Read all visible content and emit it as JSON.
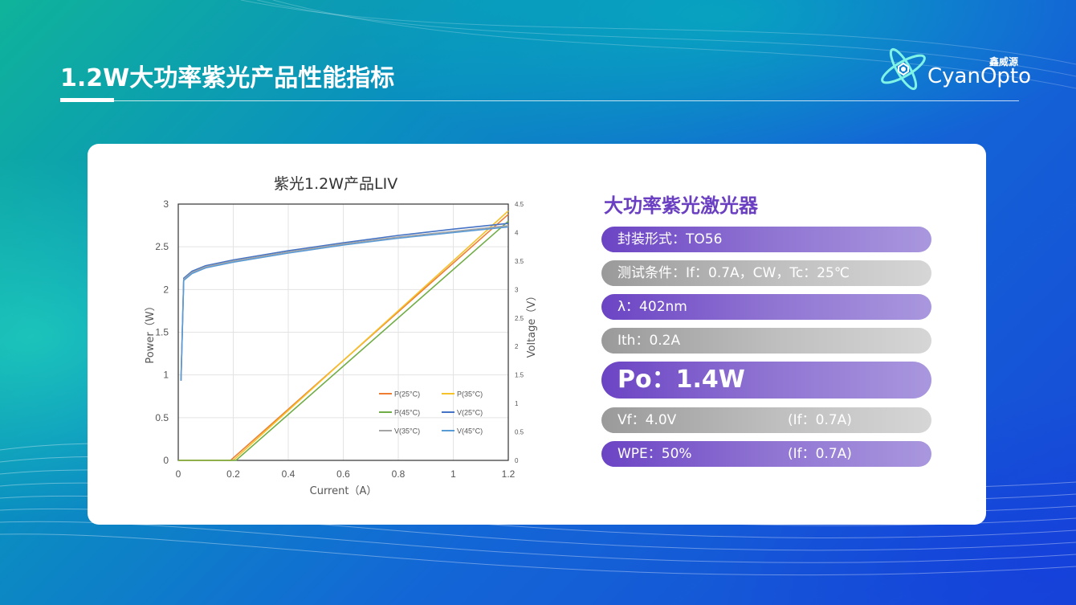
{
  "slide": {
    "title": "1.2W大功率紫光产品性能指标",
    "logo_cn": "鑫威源",
    "logo_en": "CyanOpto",
    "logo_icon": "atom-logo-icon"
  },
  "specs": {
    "heading": "大功率紫光激光器",
    "items": [
      {
        "text": "封装形式：TO56",
        "cond": "",
        "style": "purple"
      },
      {
        "text": "测试条件：If：0.7A，CW，Tc：25℃",
        "cond": "",
        "style": "gray"
      },
      {
        "text": "λ：402nm",
        "cond": "",
        "style": "purple"
      },
      {
        "text": "Ith：0.2A",
        "cond": "",
        "style": "gray"
      },
      {
        "text": "Po：1.4W",
        "cond": "",
        "style": "purple-big"
      },
      {
        "text": "Vf：4.0V",
        "cond": "(If：0.7A)",
        "style": "gray"
      },
      {
        "text": "WPE：50%",
        "cond": "(If：0.7A)",
        "style": "purple"
      }
    ]
  },
  "colors": {
    "p25": "#ee7d31",
    "p35": "#f5c22a",
    "p45": "#70ad47",
    "v25": "#4472c4",
    "v35": "#a5a5a5",
    "v45": "#5b9bd5"
  },
  "chart_data": {
    "type": "line",
    "title": "紫光1.2W产品LIV",
    "xlabel": "Current（A）",
    "ylabel": "Power（W）",
    "y2label": "Voltage（V）",
    "xlim": [
      0,
      1.2
    ],
    "ylim": [
      0,
      3
    ],
    "y2lim": [
      0,
      4.5
    ],
    "xticks": [
      "0",
      "0.2",
      "0.4",
      "0.6",
      "0.8",
      "1",
      "1.2"
    ],
    "yticks": [
      "0",
      "0.5",
      "1",
      "1.5",
      "2",
      "2.5",
      "3"
    ],
    "y2ticks": [
      "0",
      "0.5",
      "1",
      "1.5",
      "2",
      "2.5",
      "3",
      "3.5",
      "4",
      "4.5"
    ],
    "grid": true,
    "legend_position": "bottom-right",
    "series": [
      {
        "name": "P(25°C)",
        "axis": "left",
        "color_key": "p25",
        "x": [
          0,
          0.19,
          1.2
        ],
        "y": [
          0,
          0,
          2.88
        ]
      },
      {
        "name": "P(35°C)",
        "axis": "left",
        "color_key": "p35",
        "x": [
          0,
          0.2,
          1.2
        ],
        "y": [
          0,
          0,
          2.92
        ]
      },
      {
        "name": "P(45°C)",
        "axis": "left",
        "color_key": "p45",
        "x": [
          0,
          0.21,
          1.2
        ],
        "y": [
          0,
          0,
          2.8
        ]
      },
      {
        "name": "V(25°C)",
        "axis": "right",
        "color_key": "v25",
        "x": [
          0.01,
          0.02,
          0.05,
          0.1,
          0.2,
          0.4,
          0.6,
          0.8,
          1.0,
          1.2
        ],
        "y": [
          1.4,
          3.2,
          3.32,
          3.42,
          3.52,
          3.68,
          3.82,
          3.95,
          4.06,
          4.16
        ]
      },
      {
        "name": "V(35°C)",
        "axis": "right",
        "color_key": "v35",
        "x": [
          0.01,
          0.02,
          0.05,
          0.1,
          0.2,
          0.4,
          0.6,
          0.8,
          1.0,
          1.2
        ],
        "y": [
          1.4,
          3.18,
          3.3,
          3.4,
          3.5,
          3.66,
          3.8,
          3.92,
          4.02,
          4.12
        ]
      },
      {
        "name": "V(45°C)",
        "axis": "right",
        "color_key": "v45",
        "x": [
          0.01,
          0.02,
          0.05,
          0.1,
          0.2,
          0.4,
          0.6,
          0.8,
          1.0,
          1.2
        ],
        "y": [
          1.4,
          3.16,
          3.28,
          3.38,
          3.48,
          3.64,
          3.78,
          3.9,
          4.0,
          4.1
        ]
      }
    ]
  }
}
